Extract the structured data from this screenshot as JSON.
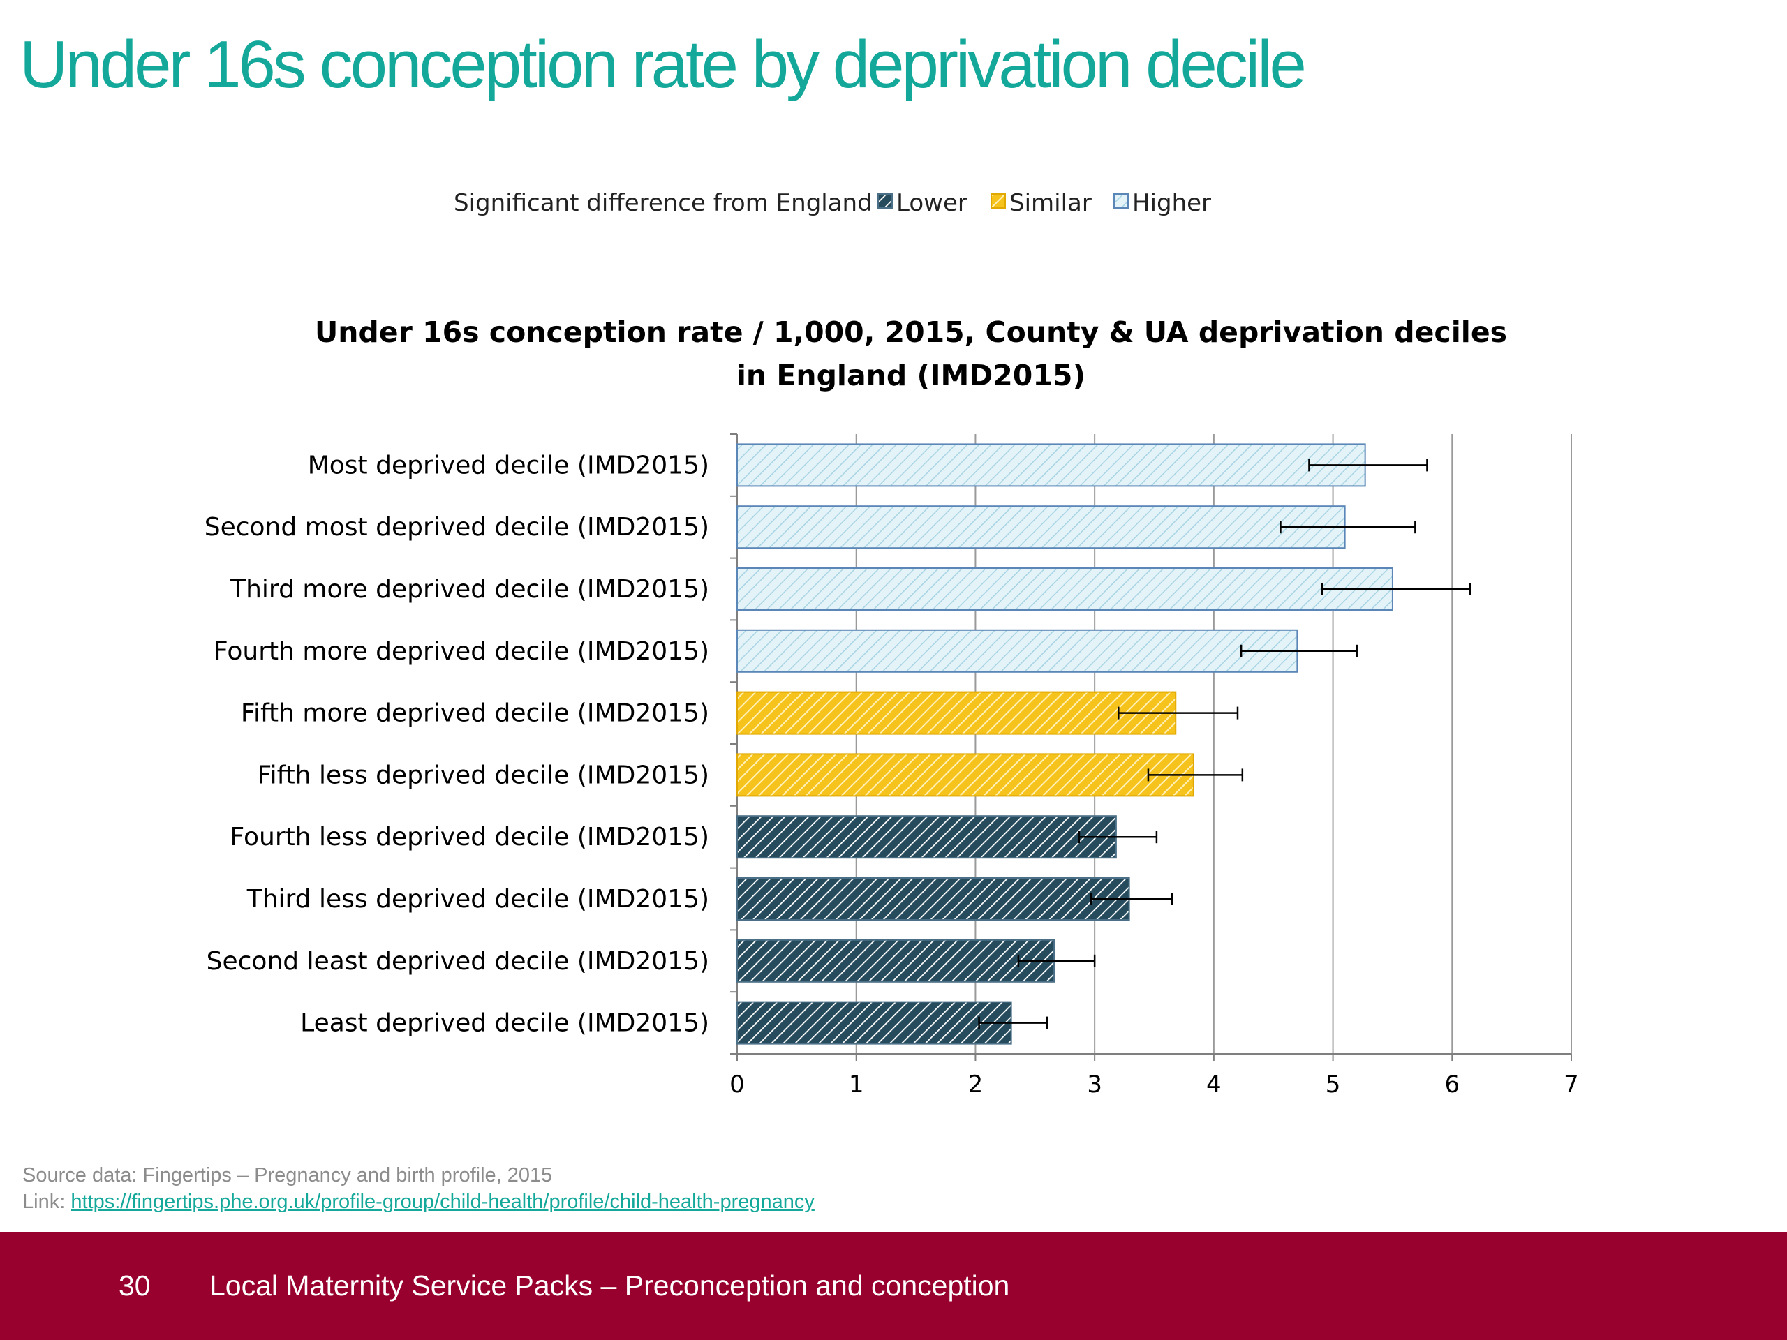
{
  "slide": {
    "title": "Under 16s conception rate by deprivation decile",
    "source_label": "Source data: Fingertips – Pregnancy and birth profile, 2015",
    "link_label": "Link:",
    "link_url": "https://fingertips.phe.org.uk/profile-group/child-health/profile/child-health-pregnancy",
    "page_number": "30",
    "footer_text": "Local Maternity Service Packs – Preconception and conception"
  },
  "chart_data": {
    "type": "bar",
    "orientation": "horizontal",
    "title_lines": [
      "Under 16s conception rate / 1,000, 2015, County & UA deprivation deciles",
      "in England (IMD2015)"
    ],
    "legend_title": "Significant difference from England",
    "legend_position": "top",
    "legend": [
      {
        "key": "lower",
        "label": "Lower"
      },
      {
        "key": "similar",
        "label": "Similar"
      },
      {
        "key": "higher",
        "label": "Higher"
      }
    ],
    "colors": {
      "lower_fill": "#264b5d",
      "lower_stripe": "#ffffff",
      "lower_border": "#4a6f86",
      "similar_fill": "#f6c21c",
      "similar_stripe": "#fff1b8",
      "similar_border": "#e0a800",
      "higher_fill": "#e4f3f8",
      "higher_stripe": "#a8d4e4",
      "higher_border": "#5b87b8",
      "grid": "#9a9a9a",
      "axis": "#7f7f7f",
      "error_bar": "#000000"
    },
    "categories": [
      "Most deprived decile (IMD2015)",
      "Second most deprived decile (IMD2015)",
      "Third more deprived decile (IMD2015)",
      "Fourth more deprived decile (IMD2015)",
      "Fifth more deprived decile (IMD2015)",
      "Fifth less deprived decile (IMD2015)",
      "Fourth less deprived decile (IMD2015)",
      "Third less deprived decile (IMD2015)",
      "Second least deprived decile (IMD2015)",
      "Least deprived decile (IMD2015)"
    ],
    "values": [
      5.27,
      5.1,
      5.5,
      4.7,
      3.68,
      3.83,
      3.18,
      3.29,
      2.66,
      2.3
    ],
    "ci_lower": [
      4.8,
      4.56,
      4.91,
      4.23,
      3.2,
      3.45,
      2.87,
      2.97,
      2.36,
      2.03
    ],
    "ci_upper": [
      5.79,
      5.69,
      6.15,
      5.2,
      4.2,
      4.24,
      3.52,
      3.65,
      3.0,
      2.6
    ],
    "significance": [
      "higher",
      "higher",
      "higher",
      "higher",
      "similar",
      "similar",
      "lower",
      "lower",
      "lower",
      "lower"
    ],
    "xlim": [
      0,
      7
    ],
    "xticks": [
      0,
      1,
      2,
      3,
      4,
      5,
      6,
      7
    ],
    "grid": true
  }
}
